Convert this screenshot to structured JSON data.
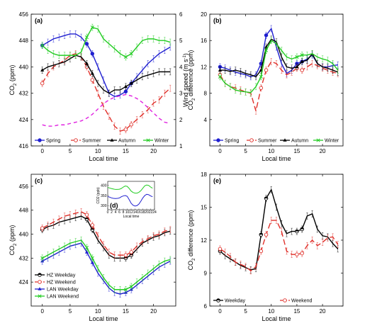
{
  "chart_data": [
    {
      "panel": "(a)",
      "type": "line",
      "x": [
        0,
        1,
        2,
        3,
        4,
        5,
        6,
        7,
        8,
        9,
        10,
        11,
        12,
        13,
        14,
        15,
        16,
        17,
        18,
        19,
        20,
        21,
        22,
        23
      ],
      "xlabel": "Local time",
      "ylabel": "CO2 (ppm)",
      "ylabel2": "Wind speed (m s-1)",
      "xlim": [
        -2,
        24
      ],
      "xticks": [
        0,
        5,
        10,
        15,
        20
      ],
      "ylim": [
        416,
        456
      ],
      "yticks": [
        416,
        424,
        432,
        440,
        448,
        456
      ],
      "y2lim": [
        1,
        6
      ],
      "y2ticks": [
        1,
        2,
        3,
        4,
        5,
        6
      ],
      "legend_position": "bottom",
      "series": [
        {
          "name": "Spring",
          "color": "#1f1fd0",
          "marker": "circle",
          "dash": "",
          "axis": "left",
          "values": [
            446.5,
            447.5,
            448.5,
            449,
            449.5,
            450,
            450,
            449,
            447,
            444,
            440,
            436,
            432,
            431,
            431.5,
            432.5,
            435,
            437,
            439,
            441,
            442.5,
            444,
            445,
            446
          ]
        },
        {
          "name": "Summer",
          "color": "#e0302a",
          "marker": "open-circle",
          "dash": "8,4",
          "axis": "left",
          "values": [
            435,
            438,
            440,
            441,
            442,
            443.5,
            444,
            443,
            440,
            436,
            432,
            428,
            425,
            422,
            420.5,
            421,
            422.5,
            424,
            425.5,
            427,
            429,
            430,
            432,
            433.5
          ]
        },
        {
          "name": "Autumn",
          "color": "#000000",
          "marker": "triangle",
          "dash": "",
          "axis": "left",
          "values": [
            439,
            440,
            440.5,
            441,
            441.5,
            442.5,
            443.5,
            443,
            441,
            438,
            435,
            433,
            432,
            433,
            433,
            434,
            435,
            436,
            437,
            437.5,
            438,
            438.5,
            438.5,
            438.5
          ]
        },
        {
          "name": "Winter",
          "color": "#22cc22",
          "marker": "x",
          "dash": "",
          "axis": "left",
          "values": [
            446.5,
            445,
            444,
            443.5,
            443.5,
            443.5,
            443.5,
            444.5,
            449,
            452,
            451.5,
            448.5,
            447,
            445.5,
            444,
            443,
            444,
            446,
            448,
            448.5,
            448.5,
            448,
            448,
            447.5
          ]
        },
        {
          "name": "",
          "color": "#e020e0",
          "marker": "none",
          "dash": "5,4",
          "axis": "right",
          "values": [
            1.8,
            1.75,
            1.75,
            1.8,
            1.8,
            1.85,
            1.9,
            1.95,
            2.05,
            2.2,
            2.4,
            2.6,
            2.75,
            2.85,
            2.9,
            2.95,
            2.9,
            2.8,
            2.65,
            2.45,
            2.25,
            2.05,
            1.9,
            1.85
          ]
        }
      ]
    },
    {
      "panel": "(b)",
      "type": "line",
      "x": [
        0,
        1,
        2,
        3,
        4,
        5,
        6,
        7,
        8,
        9,
        10,
        11,
        12,
        13,
        14,
        15,
        16,
        17,
        18,
        19,
        20,
        21,
        22,
        23
      ],
      "xlabel": "Local time",
      "ylabel": "CO2 difference (ppm)",
      "xlim": [
        -2,
        24
      ],
      "xticks": [
        0,
        5,
        10,
        15,
        20
      ],
      "ylim": [
        0,
        20
      ],
      "yticks": [
        4,
        8,
        12,
        16,
        20
      ],
      "legend_position": "bottom",
      "series": [
        {
          "name": "Spring",
          "color": "#1f1fd0",
          "marker": "circle",
          "dash": "",
          "values": [
            12,
            11.8,
            11.5,
            11.2,
            11,
            10.8,
            10.5,
            10.8,
            12.5,
            16.8,
            17.8,
            15,
            12.5,
            11,
            11.5,
            12.5,
            12.8,
            13.2,
            13.8,
            12.5,
            12,
            12,
            12.2,
            12.3
          ]
        },
        {
          "name": "Summer",
          "color": "#e0302a",
          "marker": "open-circle",
          "dash": "8,4",
          "axis": "left",
          "values": [
            10.8,
            9.5,
            9,
            8.8,
            8.5,
            8.2,
            8,
            5.3,
            8.8,
            11.5,
            12.8,
            12.5,
            11.5,
            10.8,
            11.2,
            11.8,
            11.5,
            12,
            12.5,
            12.2,
            11.8,
            11.5,
            11.2,
            11
          ]
        },
        {
          "name": "Autumn",
          "color": "#000000",
          "marker": "triangle",
          "dash": "",
          "values": [
            11.5,
            11.5,
            11.3,
            11.5,
            11.3,
            11,
            10.8,
            10.5,
            11.5,
            15,
            16.2,
            15.8,
            13.5,
            12,
            11.8,
            12,
            12.8,
            13,
            14,
            12.5,
            12,
            11.8,
            11.5,
            11.2
          ]
        },
        {
          "name": "Winter",
          "color": "#22cc22",
          "marker": "x",
          "dash": "",
          "values": [
            10.5,
            9.5,
            9,
            8.5,
            8.3,
            8.2,
            8.1,
            9,
            10.5,
            14.5,
            16,
            15.5,
            14.5,
            13.5,
            13.2,
            13.5,
            13.8,
            13.8,
            14,
            13.5,
            13.2,
            13,
            12.5,
            11.5
          ]
        }
      ]
    },
    {
      "panel": "(c)",
      "type": "line",
      "x": [
        0,
        1,
        2,
        3,
        4,
        5,
        6,
        7,
        8,
        9,
        10,
        11,
        12,
        13,
        14,
        15,
        16,
        17,
        18,
        19,
        20,
        21,
        22,
        23
      ],
      "xlabel": "Local time",
      "ylabel": "CO2 (ppm)",
      "xlim": [
        -2,
        24
      ],
      "xticks": [
        0,
        5,
        10,
        15,
        20
      ],
      "ylim": [
        416,
        460
      ],
      "yticks": [
        424,
        432,
        440,
        448,
        456
      ],
      "legend_position": "bottom-left",
      "series": [
        {
          "name": "HZ Weekday",
          "color": "#000000",
          "marker": "half-circle",
          "dash": "",
          "values": [
            441.5,
            442.5,
            443,
            444,
            444.5,
            445,
            445.5,
            446,
            445,
            441.5,
            438,
            435.5,
            433,
            432,
            432,
            432,
            433,
            435,
            437,
            438,
            439,
            439.5,
            440.5,
            441
          ]
        },
        {
          "name": "HZ Weekend",
          "color": "#e0302a",
          "marker": "open-circle",
          "dash": "8,4",
          "values": [
            442,
            443,
            444,
            445,
            446,
            446.5,
            447,
            447.5,
            446.5,
            443,
            439.5,
            436.5,
            434,
            433,
            433,
            433,
            434,
            436,
            437.5,
            438.5,
            439.5,
            440,
            441,
            441.5
          ]
        },
        {
          "name": "LAN Weekday",
          "color": "#1f1fd0",
          "marker": "triangle",
          "dash": "",
          "values": [
            431,
            432,
            433,
            434,
            435,
            436,
            436.5,
            437,
            434,
            430.5,
            427,
            424.5,
            422,
            420.5,
            420,
            420.5,
            421.5,
            423,
            424.5,
            426,
            427.5,
            429,
            430,
            431
          ]
        },
        {
          "name": "LAN Weekend",
          "color": "#22cc22",
          "marker": "x",
          "dash": "",
          "values": [
            432,
            433,
            434,
            435,
            436,
            437,
            437.5,
            438,
            435.5,
            432,
            428.5,
            425.5,
            423,
            421.5,
            421.5,
            421.5,
            422.5,
            424,
            425.5,
            427,
            428.5,
            430,
            431,
            431.5
          ]
        }
      ],
      "inset": {
        "panel": "(d)",
        "type": "line",
        "x": [
          0,
          1,
          2,
          3,
          4,
          5,
          6,
          7,
          8,
          9,
          10,
          11,
          12,
          13,
          14,
          15,
          16,
          17,
          18,
          19,
          20,
          21,
          22,
          23
        ],
        "xlabel": "Local time",
        "ylabel": "CO2 (ppb)",
        "xticks": [
          0,
          2,
          4,
          6,
          8,
          10,
          12,
          14,
          16,
          18,
          20,
          22,
          24
        ],
        "yticks": [
          300,
          350,
          400
        ],
        "series": [
          {
            "color": "#22cc22",
            "values": [
              390,
              387,
              384,
              382,
              380,
              380,
              381,
              385,
              392,
              397,
              395,
              385,
              372,
              365,
              362,
              362,
              366,
              374,
              386,
              398,
              402,
              400,
              392,
              386
            ]
          },
          {
            "color": "#1f1fd0",
            "values": [
              345,
              342,
              338,
              336,
              335,
              336,
              338,
              344,
              348,
              350,
              346,
              330,
              312,
              302,
              298,
              300,
              308,
              322,
              338,
              350,
              356,
              354,
              348,
              344
            ]
          }
        ]
      }
    },
    {
      "panel": "(e)",
      "type": "line",
      "x": [
        0,
        1,
        2,
        3,
        4,
        5,
        6,
        7,
        8,
        9,
        10,
        11,
        12,
        13,
        14,
        15,
        16,
        17,
        18,
        19,
        20,
        21,
        22,
        23
      ],
      "xlabel": "Local time",
      "ylabel": "CO2 difference (ppm)",
      "xlim": [
        -2,
        24
      ],
      "xticks": [
        0,
        5,
        10,
        15,
        20
      ],
      "ylim": [
        6,
        18
      ],
      "yticks": [
        6,
        9,
        12,
        15,
        18
      ],
      "legend_position": "bottom",
      "series": [
        {
          "name": "Weekday",
          "color": "#000000",
          "marker": "half-circle",
          "dash": "",
          "values": [
            11,
            10.6,
            10.3,
            10,
            9.7,
            9.5,
            9.3,
            9.4,
            12.5,
            15.8,
            16.6,
            15,
            13.5,
            12.6,
            12.8,
            12.8,
            13,
            14.2,
            14.4,
            13,
            12.4,
            12.3,
            11.7,
            11.2
          ]
        },
        {
          "name": "Weekend",
          "color": "#e0302a",
          "marker": "open-circle",
          "dash": "8,4",
          "values": [
            11.2,
            10.9,
            10.5,
            10,
            9.8,
            9.6,
            9.2,
            9.6,
            11,
            12.5,
            13.8,
            13.8,
            12.8,
            11,
            10.7,
            10.7,
            10.8,
            11.5,
            12,
            11.5,
            11.8,
            12.2,
            12.3,
            11.6
          ]
        }
      ]
    }
  ]
}
